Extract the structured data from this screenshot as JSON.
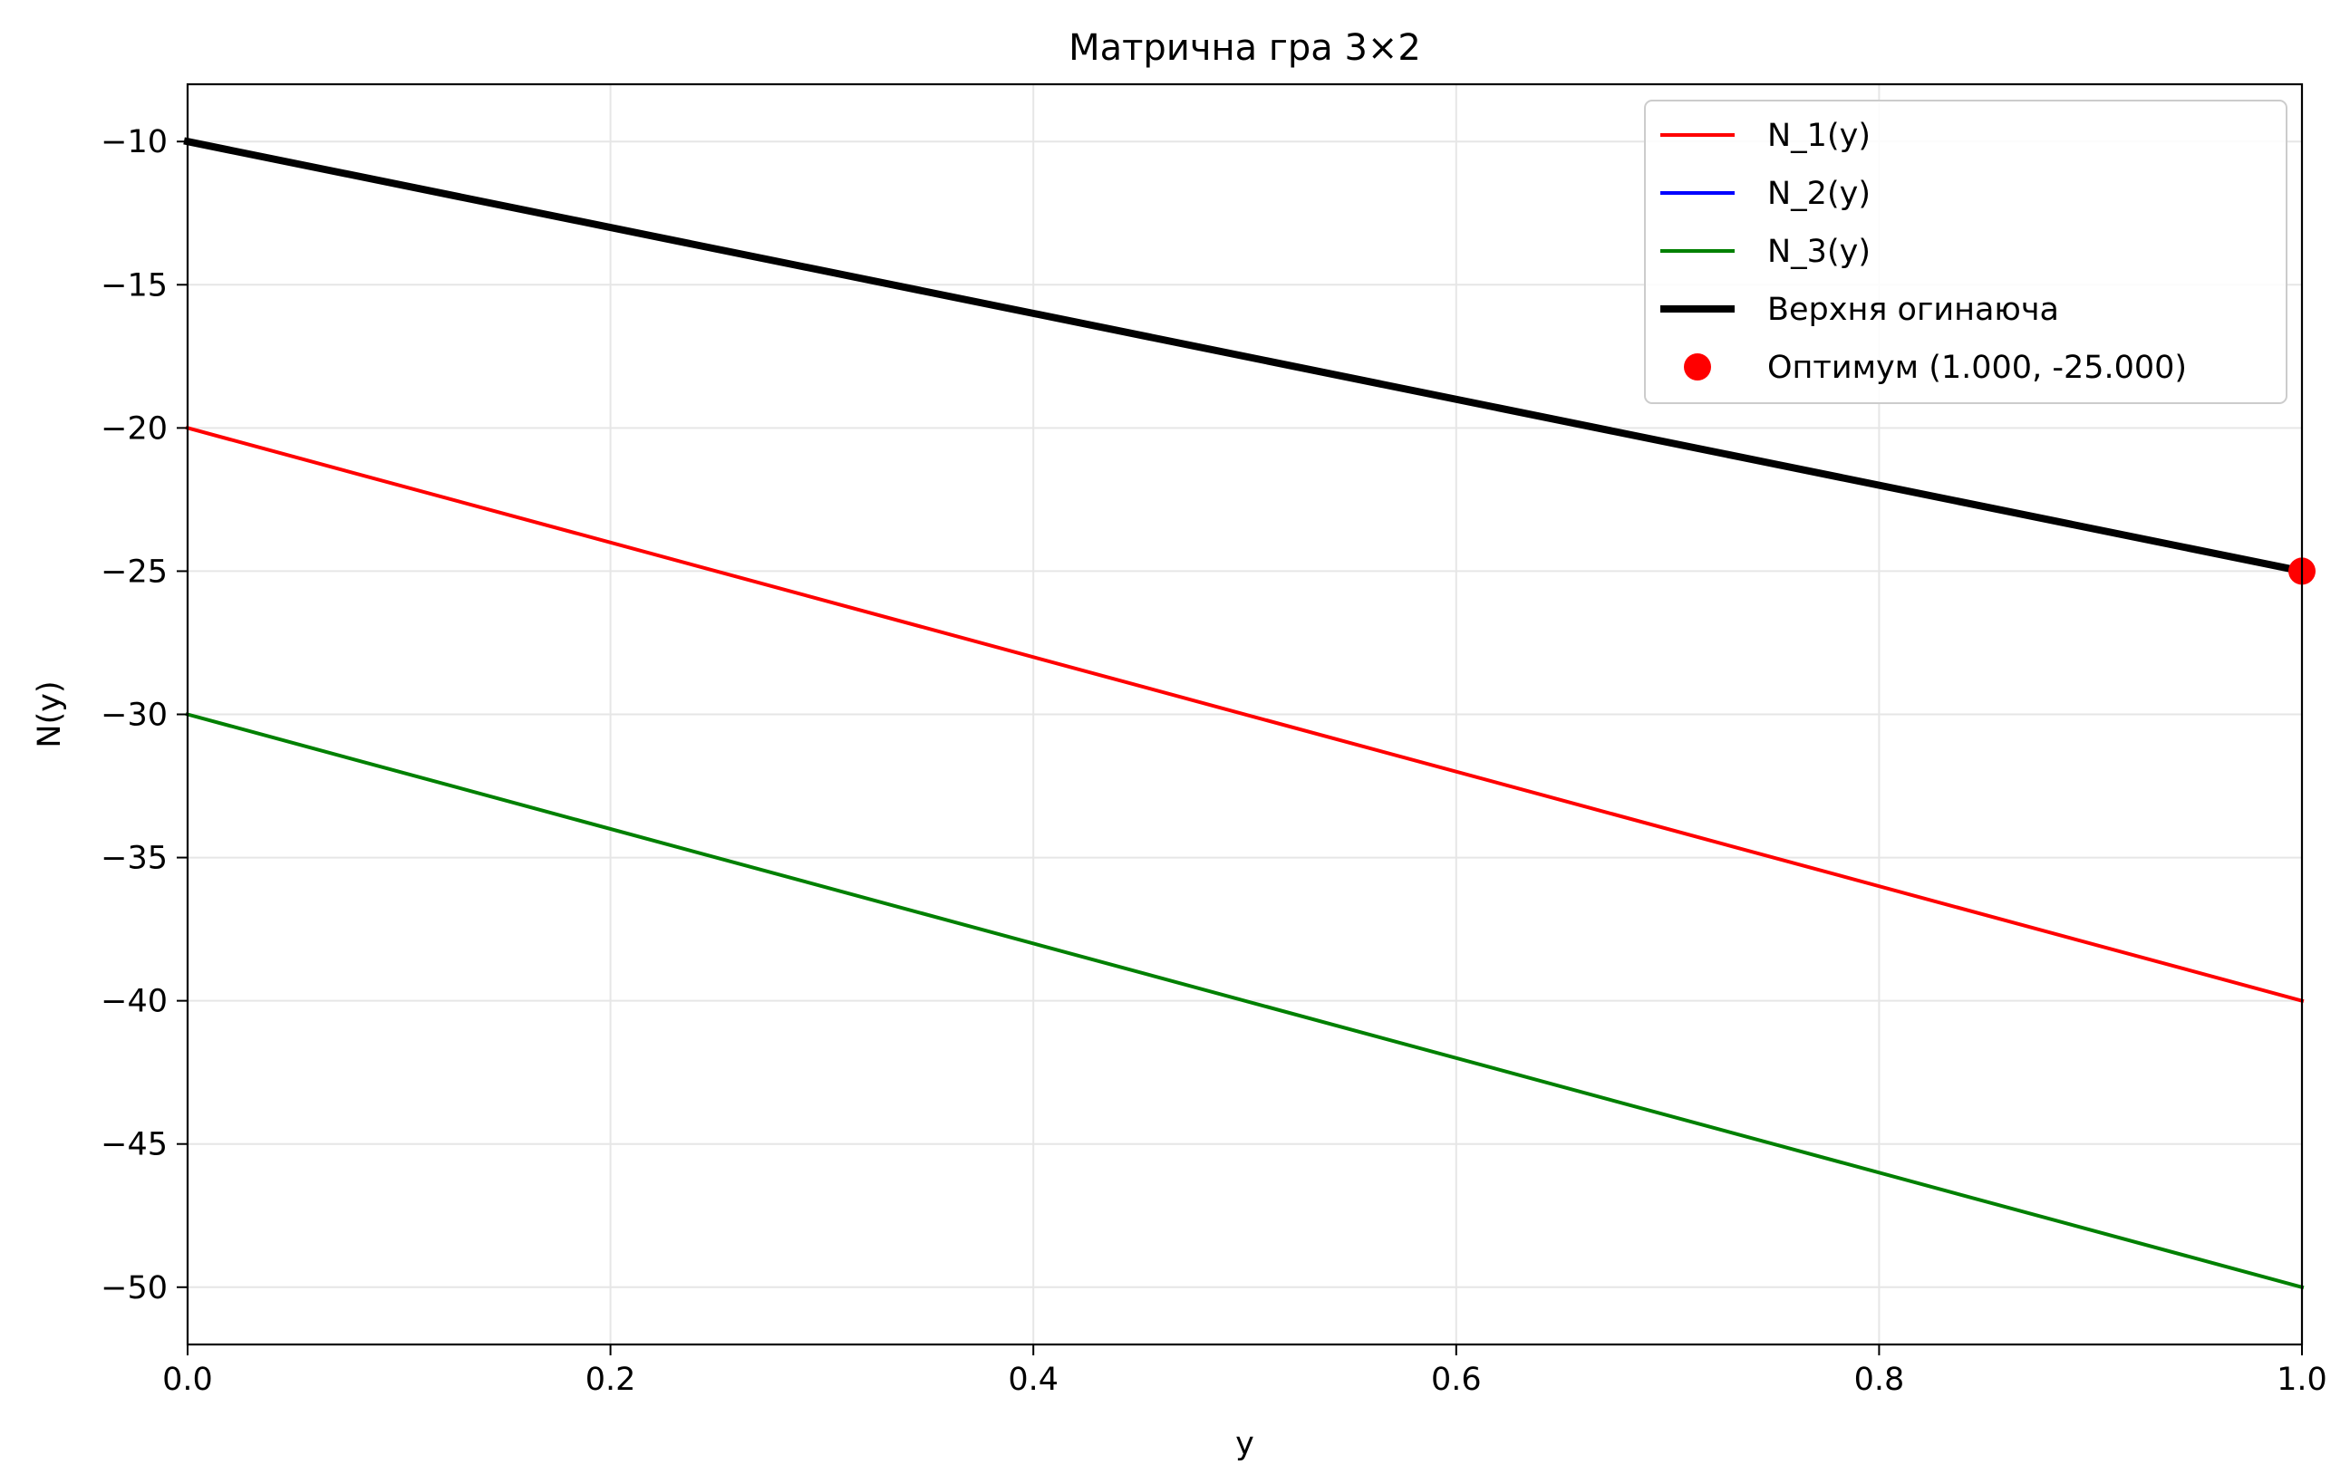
{
  "chart_data": {
    "type": "line",
    "title": "Матрична гра 3×2",
    "xlabel": "y",
    "ylabel": "N(y)",
    "xlim": [
      0,
      1
    ],
    "ylim": [
      -52,
      -8
    ],
    "xticks": [
      0.0,
      0.2,
      0.4,
      0.6,
      0.8,
      1.0
    ],
    "xtick_labels": [
      "0.0",
      "0.2",
      "0.4",
      "0.6",
      "0.8",
      "1.0"
    ],
    "yticks": [
      -10,
      -15,
      -20,
      -25,
      -30,
      -35,
      -40,
      -45,
      -50
    ],
    "ytick_labels": [
      "−10",
      "−15",
      "−20",
      "−25",
      "−30",
      "−35",
      "−40",
      "−45",
      "−50"
    ],
    "grid": true,
    "legend_position": "top-right",
    "series": [
      {
        "name": "N_1(y)",
        "color": "#ff0000",
        "x": [
          0,
          1
        ],
        "y": [
          -20,
          -40
        ],
        "style": "line"
      },
      {
        "name": "N_2(y)",
        "color": "#0000ff",
        "x": [
          0,
          1
        ],
        "y": [
          -10,
          -25
        ],
        "style": "line"
      },
      {
        "name": "N_3(y)",
        "color": "#008000",
        "x": [
          0,
          1
        ],
        "y": [
          -30,
          -50
        ],
        "style": "line"
      },
      {
        "name": "Верхня огинаюча",
        "color": "#000000",
        "x": [
          0,
          1
        ],
        "y": [
          -10,
          -25
        ],
        "style": "thick-line"
      },
      {
        "name": "Оптимум (1.000, -25.000)",
        "color": "#ff0000",
        "x": [
          1
        ],
        "y": [
          -25
        ],
        "style": "marker"
      }
    ]
  }
}
